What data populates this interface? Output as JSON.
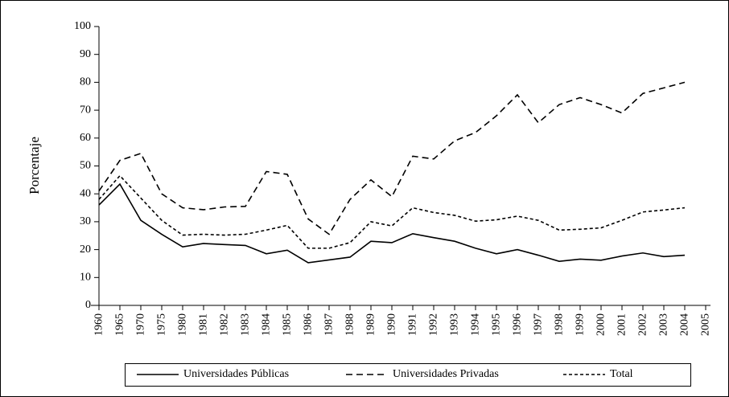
{
  "chart_data": {
    "type": "line",
    "y_label": "Porcentaje",
    "categories": [
      "1960",
      "1965",
      "1970",
      "1975",
      "1980",
      "1981",
      "1982",
      "1983",
      "1984",
      "1985",
      "1986",
      "1987",
      "1988",
      "1989",
      "1990",
      "1991",
      "1992",
      "1993",
      "1994",
      "1995",
      "1996",
      "1997",
      "1998",
      "1999",
      "2000",
      "2001",
      "2002",
      "2003",
      "2004",
      "2005"
    ],
    "series": [
      {
        "name": "Universidades Públicas",
        "color": "#000000",
        "dash": "none",
        "values": [
          36,
          43.5,
          30.5,
          25.5,
          21,
          22.2,
          21.8,
          21.5,
          18.5,
          19.8,
          15.3,
          16.3,
          17.3,
          23,
          22.5,
          25.7,
          24.3,
          23,
          20.5,
          18.5,
          20,
          18,
          15.8,
          16.6,
          16.2,
          17.7,
          18.8,
          17.5,
          18,
          null
        ]
      },
      {
        "name": "Universidades Privadas",
        "color": "#000000",
        "dash": "8,5",
        "values": [
          41,
          52,
          54.5,
          40,
          35,
          34.3,
          35.3,
          35.5,
          48,
          47,
          31,
          25.5,
          38,
          45,
          39,
          53.5,
          52.5,
          59,
          62,
          68,
          75.5,
          65.5,
          72,
          74.5,
          72,
          69,
          76,
          78,
          80,
          null
        ]
      },
      {
        "name": "Total",
        "color": "#000000",
        "dash": "4,3",
        "values": [
          38,
          46.5,
          38.5,
          30.5,
          25.2,
          25.5,
          25.2,
          25.5,
          27,
          28.7,
          20.5,
          20.5,
          22.5,
          30,
          28.5,
          35,
          33.3,
          32.3,
          30.2,
          30.7,
          32,
          30.5,
          27,
          27.3,
          27.8,
          30.5,
          33.5,
          34.2,
          35,
          null
        ]
      }
    ],
    "ylim": [
      0,
      100
    ],
    "yticks": [
      0,
      10,
      20,
      30,
      40,
      50,
      60,
      70,
      80,
      90,
      100
    ],
    "legend": "bottom"
  }
}
